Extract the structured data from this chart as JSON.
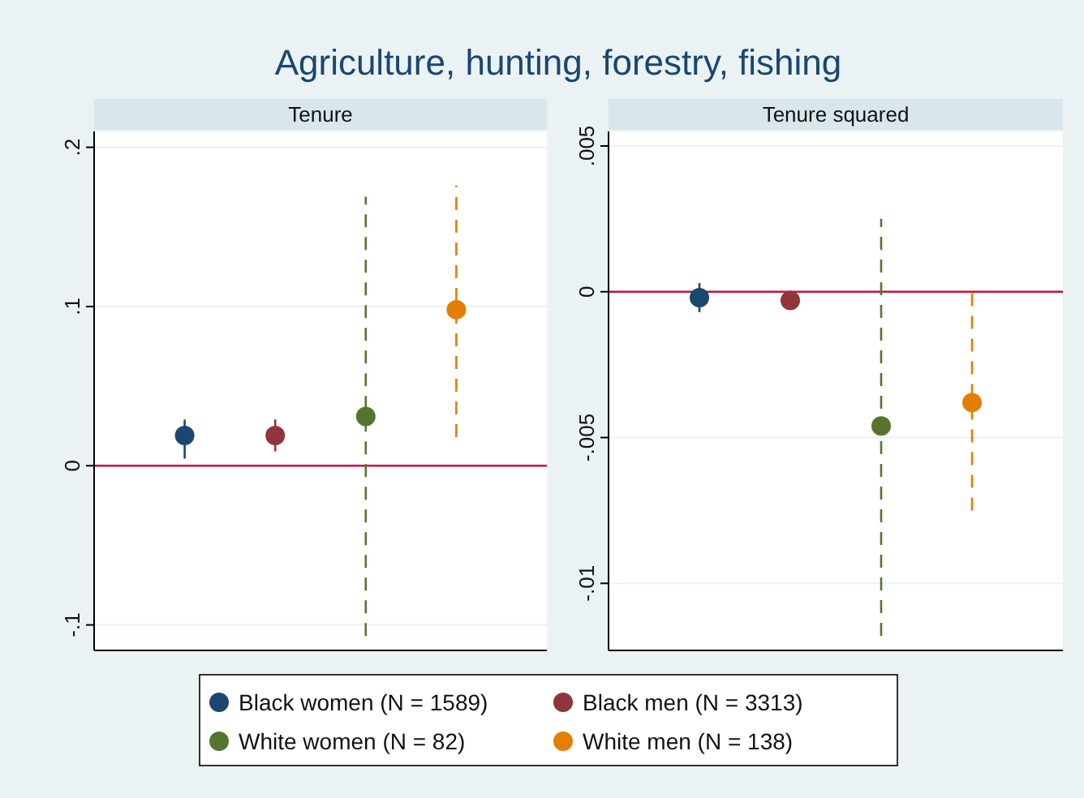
{
  "chart_data": [
    {
      "type": "scatter",
      "title": "Agriculture, hunting, forestry, fishing",
      "subtitle": "Tenure",
      "categories": [
        null,
        null,
        null,
        null
      ],
      "ylim": [
        -0.116,
        0.21
      ],
      "yticks": [
        {
          "value": -0.1,
          "label": "-.1"
        },
        0,
        {
          "value": 0.1,
          "label": ".1"
        },
        {
          "value": 0.2,
          "label": ".2"
        }
      ],
      "grid": "y",
      "marker": "circle",
      "legend": "bottom",
      "ref_lines": [
        {
          "axis": "y",
          "value": 0,
          "color": "#c8103e"
        }
      ],
      "series": [
        {
          "name": "Black women (N = 1589)",
          "color": "#1a476f",
          "line_style": "solid",
          "values": [
            0.019,
            null,
            null,
            null
          ],
          "errors": [
            [
              0.0045,
              0.029
            ],
            null,
            null,
            null
          ]
        },
        {
          "name": "Black men (N = 3313)",
          "color": "#90353b",
          "line_style": "solid",
          "values": [
            null,
            0.019,
            null,
            null
          ],
          "errors": [
            null,
            [
              0.009,
              0.029
            ],
            null,
            null
          ]
        },
        {
          "name": "White women (N = 82)",
          "color": "#55752f",
          "line_style": "dashed",
          "values": [
            null,
            null,
            0.031,
            null
          ],
          "errors": [
            null,
            null,
            [
              -0.107,
              0.169
            ],
            null
          ]
        },
        {
          "name": "White men (N = 138)",
          "color": "#e37e00",
          "line_style": "dashed",
          "values": [
            null,
            null,
            null,
            0.098
          ],
          "errors": [
            null,
            null,
            null,
            [
              0.018,
              0.176
            ]
          ]
        }
      ]
    },
    {
      "type": "scatter",
      "subtitle": "Tenure squared",
      "categories": [
        null,
        null,
        null,
        null
      ],
      "ylim": [
        -0.0123,
        0.0055
      ],
      "yticks": [
        {
          "value": -0.01,
          "label": "-.01"
        },
        {
          "value": -0.005,
          "label": "-.005"
        },
        0,
        {
          "value": 0.005,
          "label": ".005"
        }
      ],
      "grid": "y",
      "marker": "circle",
      "ref_lines": [
        {
          "axis": "y",
          "value": 0,
          "color": "#c8103e"
        }
      ],
      "series": [
        {
          "color": "#1a476f",
          "line_style": "solid",
          "values": [
            -0.0002,
            null,
            null,
            null
          ],
          "errors": [
            [
              -0.0007,
              0.0003
            ],
            null,
            null,
            null
          ]
        },
        {
          "color": "#90353b",
          "values": [
            null,
            -0.0003,
            null,
            null
          ]
        },
        {
          "color": "#55752f",
          "line_style": "dashed",
          "values": [
            null,
            null,
            -0.0046,
            null
          ],
          "errors": [
            null,
            null,
            [
              -0.0118,
              0.0025
            ],
            null
          ]
        },
        {
          "color": "#e37e00",
          "line_style": "dashed",
          "values": [
            null,
            null,
            null,
            -0.0038
          ],
          "errors": [
            null,
            null,
            null,
            [
              -0.0075,
              0
            ]
          ]
        }
      ]
    }
  ]
}
